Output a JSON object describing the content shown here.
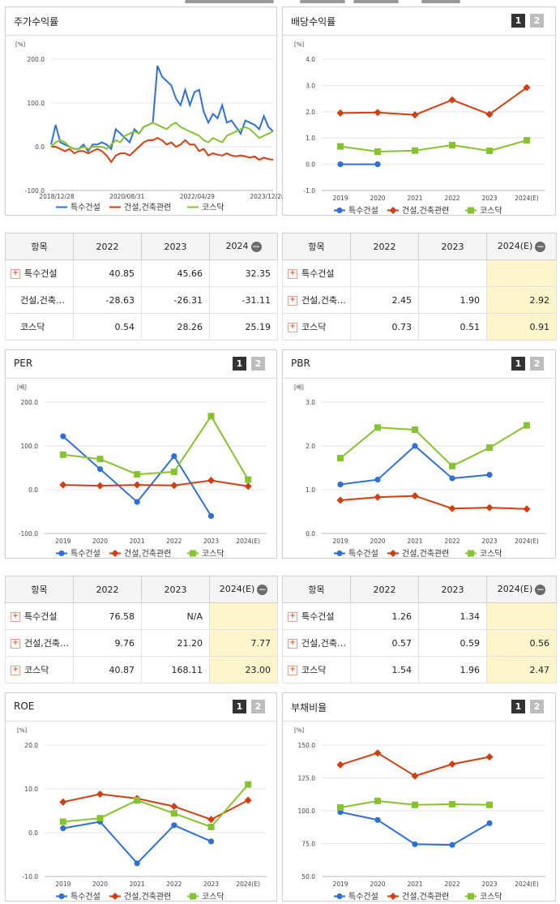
{
  "colors": {
    "s1": "#2f6fd6",
    "s2": "#cf3f12",
    "s3": "#86c232"
  },
  "panels": {
    "price": {
      "title": "주가수익률"
    },
    "dividend": {
      "title": "배당수익률",
      "btn1": "1",
      "btn2": "2"
    },
    "per": {
      "title": "PER",
      "btn1": "1",
      "btn2": "2"
    },
    "pbr": {
      "title": "PBR",
      "btn1": "1",
      "btn2": "2"
    },
    "roe": {
      "title": "ROE",
      "btn1": "1",
      "btn2": "2"
    },
    "debt": {
      "title": "부채비율",
      "btn1": "1",
      "btn2": "2"
    }
  },
  "tables": {
    "price": {
      "headers": [
        "항목",
        "2022",
        "2023",
        "2024"
      ],
      "rows": [
        {
          "name": "특수건설",
          "expand": true,
          "v": [
            "40.85",
            "45.66",
            "32.35"
          ]
        },
        {
          "name": "건설,건축…",
          "expand": false,
          "v": [
            "-28.63",
            "-26.31",
            "-31.11"
          ]
        },
        {
          "name": "코스닥",
          "expand": false,
          "v": [
            "0.54",
            "28.26",
            "25.19"
          ]
        }
      ]
    },
    "dividend": {
      "headers": [
        "항목",
        "2022",
        "2023",
        "2024(E)"
      ],
      "rows": [
        {
          "name": "특수건설",
          "expand": true,
          "v": [
            "",
            "",
            ""
          ]
        },
        {
          "name": "건설,건축…",
          "expand": true,
          "v": [
            "2.45",
            "1.90",
            "2.92"
          ]
        },
        {
          "name": "코스닥",
          "expand": true,
          "v": [
            "0.73",
            "0.51",
            "0.91"
          ]
        }
      ]
    },
    "per": {
      "headers": [
        "항목",
        "2022",
        "2023",
        "2024(E)"
      ],
      "rows": [
        {
          "name": "특수건설",
          "expand": true,
          "v": [
            "76.58",
            "N/A",
            ""
          ]
        },
        {
          "name": "건설,건축…",
          "expand": true,
          "v": [
            "9.76",
            "21.20",
            "7.77"
          ]
        },
        {
          "name": "코스닥",
          "expand": true,
          "v": [
            "40.87",
            "168.11",
            "23.00"
          ]
        }
      ]
    },
    "pbr": {
      "headers": [
        "항목",
        "2022",
        "2023",
        "2024(E)"
      ],
      "rows": [
        {
          "name": "특수건설",
          "expand": true,
          "v": [
            "1.26",
            "1.34",
            ""
          ]
        },
        {
          "name": "건설,건축…",
          "expand": true,
          "v": [
            "0.57",
            "0.59",
            "0.56"
          ]
        },
        {
          "name": "코스닥",
          "expand": true,
          "v": [
            "1.54",
            "1.96",
            "2.47"
          ]
        }
      ]
    }
  },
  "chart_data": [
    {
      "id": "price",
      "type": "line",
      "unit": "[%]",
      "ylim": [
        -100,
        200
      ],
      "yticks": [
        "200.0",
        "100.0",
        "0.0",
        "-100.0"
      ],
      "xticks": [
        "2018/12/28",
        "2020/08/31",
        "2022/04/29",
        "2023/12/28"
      ],
      "series": [
        {
          "name": "특수건설",
          "values": [
            5,
            50,
            10,
            5,
            0,
            -5,
            -5,
            5,
            -10,
            5,
            5,
            10,
            5,
            -5,
            40,
            30,
            20,
            10,
            40,
            30,
            45,
            50,
            55,
            185,
            160,
            150,
            140,
            110,
            95,
            130,
            95,
            125,
            130,
            80,
            55,
            75,
            65,
            95,
            55,
            60,
            45,
            30,
            60,
            55,
            50,
            40,
            70,
            45,
            35
          ]
        },
        {
          "name": "건설,건축관련",
          "values": [
            0,
            0,
            -5,
            -10,
            -5,
            -15,
            -10,
            -10,
            -15,
            -10,
            -5,
            -10,
            -20,
            -35,
            -20,
            -15,
            -15,
            -20,
            -10,
            0,
            10,
            15,
            15,
            20,
            15,
            5,
            10,
            0,
            5,
            15,
            5,
            5,
            -10,
            -5,
            -20,
            -15,
            -18,
            -20,
            -15,
            -20,
            -22,
            -20,
            -22,
            -25,
            -22,
            -30,
            -25,
            -28,
            -30
          ]
        },
        {
          "name": "코스닥",
          "values": [
            0,
            10,
            15,
            10,
            0,
            -5,
            -5,
            0,
            -5,
            0,
            0,
            0,
            -5,
            5,
            15,
            10,
            25,
            30,
            35,
            30,
            45,
            50,
            55,
            50,
            45,
            40,
            50,
            55,
            45,
            40,
            35,
            30,
            25,
            15,
            10,
            20,
            15,
            10,
            25,
            30,
            35,
            40,
            45,
            40,
            30,
            20,
            25,
            30,
            35
          ]
        }
      ]
    },
    {
      "id": "dividend",
      "type": "line",
      "unit": "[%]",
      "ylim": [
        -1,
        4
      ],
      "yticks": [
        "4.0",
        "3.0",
        "2.0",
        "1.0",
        "0.0",
        "-1.0"
      ],
      "categories": [
        "2019",
        "2020",
        "2021",
        "2022",
        "2023",
        "2024(E)"
      ],
      "series": [
        {
          "name": "특수건설",
          "values": [
            0.0,
            0.0,
            null,
            null,
            null,
            null
          ]
        },
        {
          "name": "건설,건축관련",
          "values": [
            1.95,
            1.97,
            1.88,
            2.45,
            1.9,
            2.92
          ]
        },
        {
          "name": "코스닥",
          "values": [
            0.68,
            0.48,
            0.52,
            0.73,
            0.51,
            0.91
          ]
        }
      ]
    },
    {
      "id": "per",
      "type": "line",
      "unit": "[배]",
      "ylim": [
        -100,
        200
      ],
      "yticks": [
        "200.0",
        "100.0",
        "0.0",
        "-100.0"
      ],
      "categories": [
        "2019",
        "2020",
        "2021",
        "2022",
        "2023",
        "2024(E)"
      ],
      "series": [
        {
          "name": "특수건설",
          "values": [
            122,
            47,
            -28,
            76.58,
            -60,
            null
          ]
        },
        {
          "name": "건설,건축관련",
          "values": [
            11,
            9,
            11,
            9.76,
            21.2,
            7.77
          ]
        },
        {
          "name": "코스닥",
          "values": [
            80,
            70,
            35,
            40.87,
            168.11,
            23.0
          ]
        }
      ]
    },
    {
      "id": "pbr",
      "type": "line",
      "unit": "[배]",
      "ylim": [
        0,
        3
      ],
      "yticks": [
        "3.0",
        "2.0",
        "1.0",
        "0.0"
      ],
      "categories": [
        "2019",
        "2020",
        "2021",
        "2022",
        "2023",
        "2024(E)"
      ],
      "series": [
        {
          "name": "특수건설",
          "values": [
            1.12,
            1.23,
            2.0,
            1.26,
            1.34,
            null
          ]
        },
        {
          "name": "건설,건축관련",
          "values": [
            0.76,
            0.83,
            0.86,
            0.57,
            0.59,
            0.56
          ]
        },
        {
          "name": "코스닥",
          "values": [
            1.72,
            2.42,
            2.37,
            1.54,
            1.96,
            2.47
          ]
        }
      ]
    },
    {
      "id": "roe",
      "type": "line",
      "unit": "[%]",
      "ylim": [
        -10,
        20
      ],
      "yticks": [
        "20.0",
        "10.0",
        "0.0",
        "-10.0"
      ],
      "categories": [
        "2019",
        "2020",
        "2021",
        "2022",
        "2023",
        "2024(E)"
      ],
      "series": [
        {
          "name": "특수건설",
          "values": [
            1.0,
            2.5,
            -7.0,
            1.7,
            -2.0,
            null
          ]
        },
        {
          "name": "건설,건축관련",
          "values": [
            7.0,
            8.8,
            7.8,
            6.0,
            3.0,
            7.4
          ]
        },
        {
          "name": "코스닥",
          "values": [
            2.5,
            3.3,
            7.4,
            4.4,
            1.3,
            11.0
          ]
        }
      ]
    },
    {
      "id": "debt",
      "type": "line",
      "unit": "[%]",
      "ylim": [
        50,
        150
      ],
      "yticks": [
        "150.0",
        "125.0",
        "100.0",
        "75.0",
        "50.0"
      ],
      "categories": [
        "2019",
        "2020",
        "2021",
        "2022",
        "2023",
        "2024(E)"
      ],
      "series": [
        {
          "name": "특수건설",
          "values": [
            99,
            93,
            74.5,
            74,
            90.5,
            null
          ]
        },
        {
          "name": "건설,건축관련",
          "values": [
            135,
            144,
            126.5,
            135.5,
            141,
            null
          ]
        },
        {
          "name": "코스닥",
          "values": [
            102.5,
            107.5,
            104.5,
            105,
            104.5,
            null
          ]
        }
      ]
    }
  ]
}
